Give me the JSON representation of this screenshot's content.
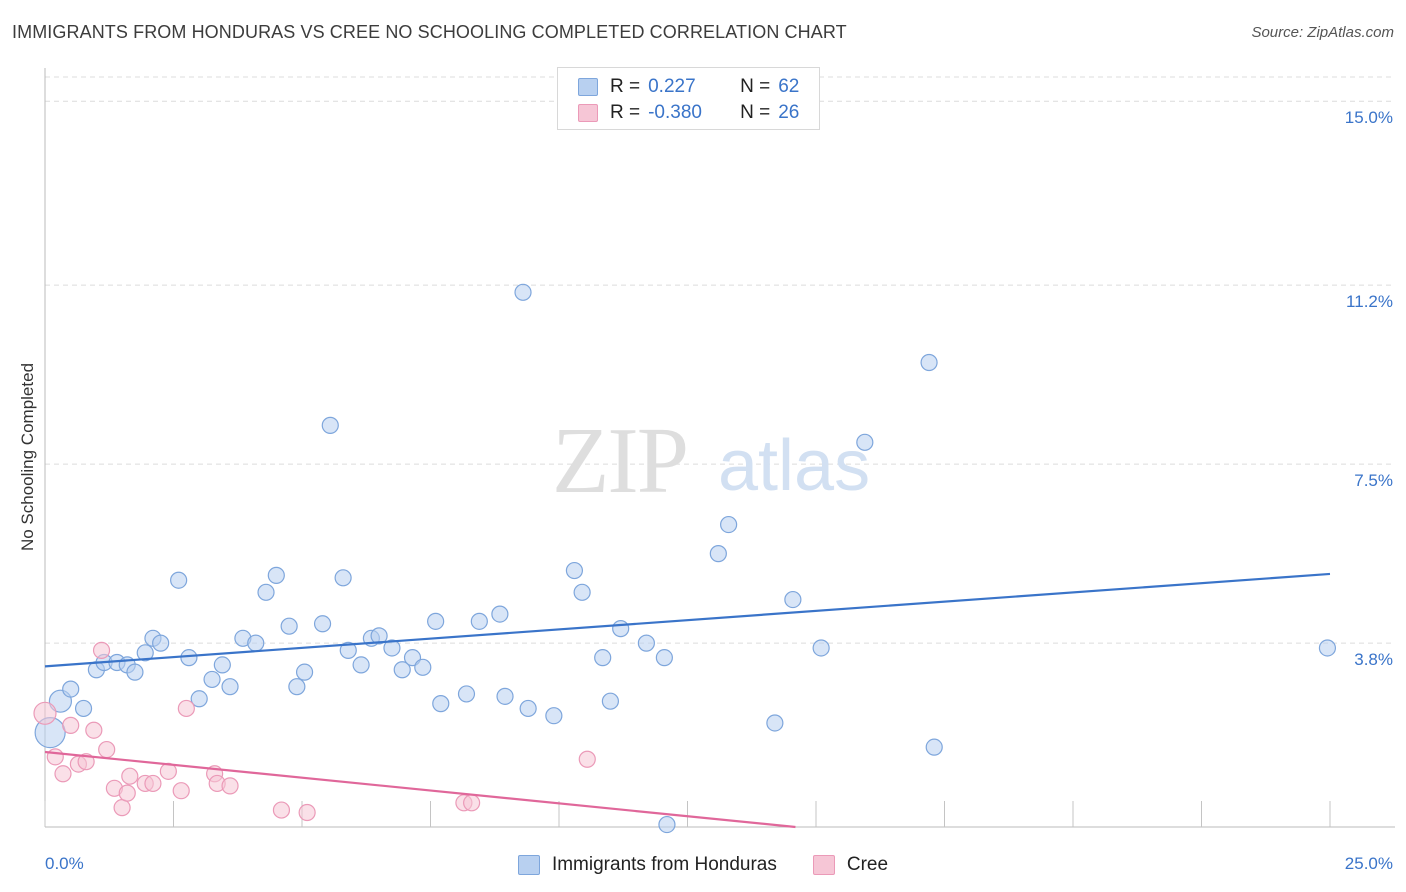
{
  "title": "IMMIGRANTS FROM HONDURAS VS CREE NO SCHOOLING COMPLETED CORRELATION CHART",
  "source": "Source: ZipAtlas.com",
  "watermark": {
    "zip": "ZIP",
    "atlas": "atlas"
  },
  "colors": {
    "blue": "#3a74c9",
    "blue_fill": "#b8d0f0",
    "blue_stroke": "#7ea6dc",
    "pink": "#e0679a",
    "pink_fill": "#f6c6d6",
    "pink_stroke": "#eb9ab8",
    "grid": "#dcdcdc"
  },
  "legend": {
    "r_label": "R =",
    "n_label": "N =",
    "rows": [
      {
        "r": "0.227",
        "n": "62"
      },
      {
        "r": "-0.380",
        "n": "26"
      }
    ]
  },
  "chart_data": {
    "type": "scatter",
    "title": "IMMIGRANTS FROM HONDURAS VS CREE NO SCHOOLING COMPLETED CORRELATION CHART",
    "xlabel": "",
    "ylabel": "No Schooling Completed",
    "xlim": [
      0,
      25
    ],
    "ylim": [
      0,
      15.5
    ],
    "x_tick_labels": [
      "0.0%",
      "25.0%"
    ],
    "y_ticks": [
      3.8,
      7.5,
      11.2,
      15.0
    ],
    "y_tick_labels": [
      "3.8%",
      "7.5%",
      "11.2%",
      "15.0%"
    ],
    "grid": "horizontal dashed",
    "legend_position": "top-center",
    "series": [
      {
        "name": "Immigrants from Honduras",
        "color": "#3a74c9",
        "trend": {
          "x": [
            0,
            25
          ],
          "y": [
            3.32,
            5.23
          ]
        },
        "points": [
          {
            "x": 0.1,
            "y": 1.95,
            "size": "large"
          },
          {
            "x": 0.3,
            "y": 2.6,
            "size": "medium"
          },
          {
            "x": 0.5,
            "y": 2.85
          },
          {
            "x": 0.75,
            "y": 2.45
          },
          {
            "x": 1.0,
            "y": 3.25
          },
          {
            "x": 1.15,
            "y": 3.4
          },
          {
            "x": 1.4,
            "y": 3.4
          },
          {
            "x": 1.6,
            "y": 3.35
          },
          {
            "x": 1.75,
            "y": 3.2
          },
          {
            "x": 1.95,
            "y": 3.6
          },
          {
            "x": 2.1,
            "y": 3.9
          },
          {
            "x": 2.25,
            "y": 3.8
          },
          {
            "x": 2.6,
            "y": 5.1
          },
          {
            "x": 2.8,
            "y": 3.5
          },
          {
            "x": 3.0,
            "y": 2.65
          },
          {
            "x": 3.25,
            "y": 3.05
          },
          {
            "x": 3.45,
            "y": 3.35
          },
          {
            "x": 3.6,
            "y": 2.9
          },
          {
            "x": 3.85,
            "y": 3.9
          },
          {
            "x": 4.1,
            "y": 3.8
          },
          {
            "x": 4.3,
            "y": 4.85
          },
          {
            "x": 4.5,
            "y": 5.2
          },
          {
            "x": 4.75,
            "y": 4.15
          },
          {
            "x": 4.9,
            "y": 2.9
          },
          {
            "x": 5.05,
            "y": 3.2
          },
          {
            "x": 5.4,
            "y": 4.2
          },
          {
            "x": 5.55,
            "y": 8.3
          },
          {
            "x": 5.8,
            "y": 5.15
          },
          {
            "x": 5.9,
            "y": 3.65
          },
          {
            "x": 6.15,
            "y": 3.35
          },
          {
            "x": 6.35,
            "y": 3.9
          },
          {
            "x": 6.5,
            "y": 3.95
          },
          {
            "x": 6.75,
            "y": 3.7
          },
          {
            "x": 6.95,
            "y": 3.25
          },
          {
            "x": 7.15,
            "y": 3.5
          },
          {
            "x": 7.35,
            "y": 3.3
          },
          {
            "x": 7.6,
            "y": 4.25
          },
          {
            "x": 7.7,
            "y": 2.55
          },
          {
            "x": 8.2,
            "y": 2.75
          },
          {
            "x": 8.45,
            "y": 4.25
          },
          {
            "x": 8.85,
            "y": 4.4
          },
          {
            "x": 8.95,
            "y": 2.7
          },
          {
            "x": 9.3,
            "y": 11.05
          },
          {
            "x": 9.4,
            "y": 2.45
          },
          {
            "x": 9.9,
            "y": 2.3
          },
          {
            "x": 10.3,
            "y": 5.3
          },
          {
            "x": 10.45,
            "y": 4.85
          },
          {
            "x": 10.85,
            "y": 3.5
          },
          {
            "x": 11.0,
            "y": 2.6
          },
          {
            "x": 11.2,
            "y": 4.1
          },
          {
            "x": 11.7,
            "y": 3.8
          },
          {
            "x": 12.05,
            "y": 3.5
          },
          {
            "x": 12.1,
            "y": 0.05
          },
          {
            "x": 13.1,
            "y": 5.65
          },
          {
            "x": 13.3,
            "y": 6.25
          },
          {
            "x": 14.2,
            "y": 2.15
          },
          {
            "x": 14.55,
            "y": 4.7
          },
          {
            "x": 15.1,
            "y": 3.7
          },
          {
            "x": 15.95,
            "y": 7.95
          },
          {
            "x": 17.2,
            "y": 9.6
          },
          {
            "x": 17.3,
            "y": 1.65
          },
          {
            "x": 24.95,
            "y": 3.7
          }
        ]
      },
      {
        "name": "Cree",
        "color": "#e0679a",
        "trend": {
          "x": [
            0,
            14.6
          ],
          "y": [
            1.55,
            0.0
          ]
        },
        "points": [
          {
            "x": 0.0,
            "y": 2.35,
            "size": "medium"
          },
          {
            "x": 0.2,
            "y": 1.45
          },
          {
            "x": 0.35,
            "y": 1.1
          },
          {
            "x": 0.5,
            "y": 2.1
          },
          {
            "x": 0.65,
            "y": 1.3
          },
          {
            "x": 0.8,
            "y": 1.35
          },
          {
            "x": 0.95,
            "y": 2.0
          },
          {
            "x": 1.1,
            "y": 3.65
          },
          {
            "x": 1.2,
            "y": 1.6
          },
          {
            "x": 1.35,
            "y": 0.8
          },
          {
            "x": 1.5,
            "y": 0.4
          },
          {
            "x": 1.6,
            "y": 0.7
          },
          {
            "x": 1.65,
            "y": 1.05
          },
          {
            "x": 1.95,
            "y": 0.9
          },
          {
            "x": 2.1,
            "y": 0.9
          },
          {
            "x": 2.4,
            "y": 1.15
          },
          {
            "x": 2.65,
            "y": 0.75
          },
          {
            "x": 2.75,
            "y": 2.45
          },
          {
            "x": 3.3,
            "y": 1.1
          },
          {
            "x": 3.35,
            "y": 0.9
          },
          {
            "x": 3.6,
            "y": 0.85
          },
          {
            "x": 4.6,
            "y": 0.35
          },
          {
            "x": 5.1,
            "y": 0.3
          },
          {
            "x": 8.15,
            "y": 0.5
          },
          {
            "x": 8.3,
            "y": 0.5
          },
          {
            "x": 10.55,
            "y": 1.4
          }
        ]
      }
    ]
  }
}
